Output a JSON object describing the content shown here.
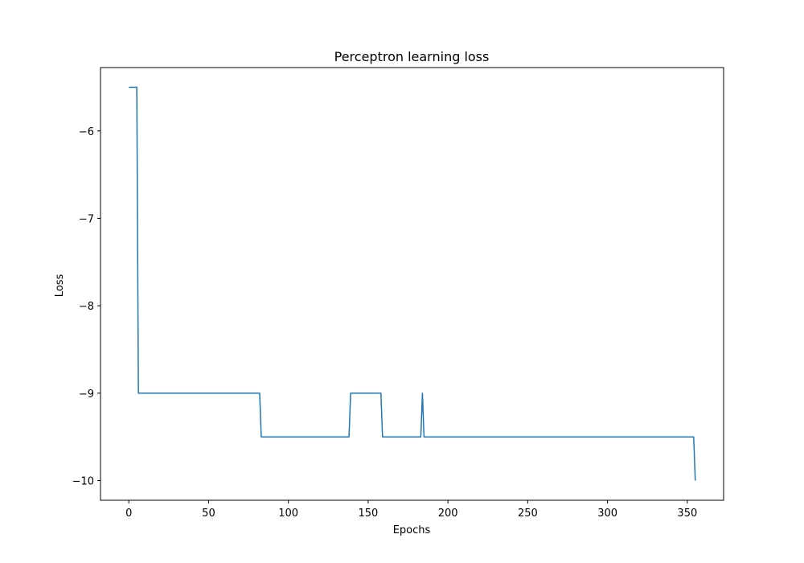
{
  "chart_data": {
    "type": "line",
    "title": "Perceptron learning loss",
    "xlabel": "Epochs",
    "ylabel": "Loss",
    "xlim": [
      -17.75,
      372.75
    ],
    "ylim": [
      -10.225,
      -5.275
    ],
    "xticks": [
      0,
      50,
      100,
      150,
      200,
      250,
      300,
      350
    ],
    "yticks": [
      -10,
      -9,
      -8,
      -7,
      -6
    ],
    "ytick_labels": [
      "−10",
      "−9",
      "−8",
      "−7",
      "−6"
    ],
    "grid": false,
    "legend": "none",
    "series": [
      {
        "color": "#1f77b4",
        "x": [
          0,
          5,
          6,
          82,
          83,
          138,
          139,
          158,
          159,
          183,
          184,
          185,
          354,
          355
        ],
        "y": [
          -5.5,
          -5.5,
          -9.0,
          -9.0,
          -9.5,
          -9.5,
          -9.0,
          -9.0,
          -9.5,
          -9.5,
          -9.0,
          -9.5,
          -9.5,
          -10.0
        ]
      }
    ]
  }
}
